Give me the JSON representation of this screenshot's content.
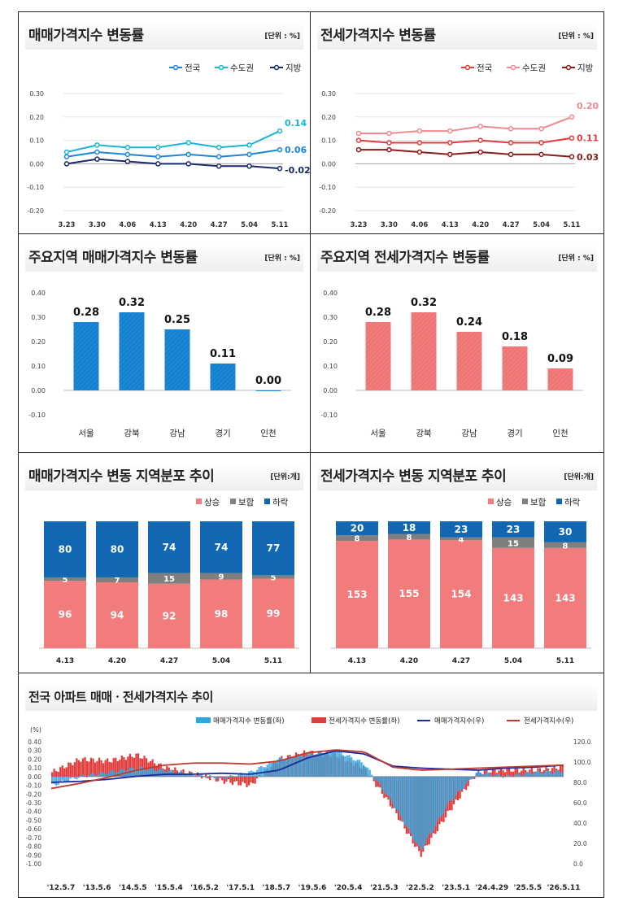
{
  "colors": {
    "blue": "#1b87d8",
    "cyan": "#1cb4d6",
    "navy": "#1b2a6b",
    "red": "#e23b3b",
    "pink": "#f08a8f",
    "darkred": "#8a1c1c",
    "rise": "#f27b7b",
    "flat": "#7f7f7f",
    "fall": "#1167b1"
  },
  "panels": {
    "sale_trend": {
      "title": "매매가격지수 변동률",
      "unit": "[단위 : %]"
    },
    "jeonse_trend": {
      "title": "전세가격지수 변동률",
      "unit": "[단위 : %]"
    },
    "sale_region": {
      "title": "주요지역 매매가격지수 변동률",
      "unit": "[단위 : %]"
    },
    "jeonse_region": {
      "title": "주요지역 전세가격지수 변동률",
      "unit": "[단위 : %]"
    },
    "sale_dist": {
      "title": "매매가격지수 변동 지역분포 추이",
      "unit": "[단위:개]"
    },
    "jeonse_dist": {
      "title": "전세가격지수 변동 지역분포 추이",
      "unit": "[단위:개]"
    },
    "national": {
      "title": "전국 아파트 매매ㆍ전세가격지수 추이"
    }
  },
  "chart_data": [
    {
      "id": "sale_trend",
      "type": "line",
      "categories": [
        "3.23",
        "3.30",
        "4.06",
        "4.13",
        "4.20",
        "4.27",
        "5.04",
        "5.11"
      ],
      "ylim": [
        -0.2,
        0.3
      ],
      "yticks": [
        "0.30",
        "0.20",
        "0.10",
        "0.00",
        "-0.10",
        "-0.20"
      ],
      "series": [
        {
          "name": "전국",
          "color": "#1b87d8",
          "values": [
            0.03,
            0.05,
            0.04,
            0.03,
            0.04,
            0.03,
            0.04,
            0.06
          ],
          "end_label": "0.06"
        },
        {
          "name": "수도권",
          "color": "#1cb4d6",
          "values": [
            0.05,
            0.08,
            0.07,
            0.07,
            0.09,
            0.07,
            0.08,
            0.14
          ],
          "end_label": "0.14"
        },
        {
          "name": "지방",
          "color": "#1b2a6b",
          "values": [
            0.0,
            0.02,
            0.01,
            0.0,
            0.0,
            -0.01,
            -0.01,
            -0.02
          ],
          "end_label": "-0.02"
        }
      ]
    },
    {
      "id": "jeonse_trend",
      "type": "line",
      "categories": [
        "3.23",
        "3.30",
        "4.06",
        "4.13",
        "4.20",
        "4.27",
        "5.04",
        "5.11"
      ],
      "ylim": [
        -0.2,
        0.3
      ],
      "yticks": [
        "0.30",
        "0.20",
        "0.10",
        "0.00",
        "-0.10",
        "-0.20"
      ],
      "series": [
        {
          "name": "전국",
          "color": "#e23b3b",
          "values": [
            0.1,
            0.09,
            0.09,
            0.09,
            0.1,
            0.09,
            0.09,
            0.11
          ],
          "end_label": "0.11"
        },
        {
          "name": "수도권",
          "color": "#f08a8f",
          "values": [
            0.13,
            0.13,
            0.14,
            0.14,
            0.16,
            0.15,
            0.15,
            0.2
          ],
          "end_label": "0.20"
        },
        {
          "name": "지방",
          "color": "#8a1c1c",
          "values": [
            0.06,
            0.06,
            0.05,
            0.04,
            0.05,
            0.04,
            0.04,
            0.03
          ],
          "end_label": "0.03"
        }
      ]
    },
    {
      "id": "sale_region",
      "type": "bar",
      "categories": [
        "서울",
        "강북",
        "강남",
        "경기",
        "인천"
      ],
      "values": [
        0.28,
        0.32,
        0.25,
        0.11,
        0.0
      ],
      "labels": [
        "0.28",
        "0.32",
        "0.25",
        "0.11",
        "0.00"
      ],
      "ylim": [
        -0.1,
        0.4
      ],
      "yticks": [
        "0.40",
        "0.30",
        "0.20",
        "0.10",
        "0.00",
        "-0.10"
      ]
    },
    {
      "id": "jeonse_region",
      "type": "bar",
      "categories": [
        "서울",
        "강북",
        "강남",
        "경기",
        "인천"
      ],
      "values": [
        0.28,
        0.32,
        0.24,
        0.18,
        0.09
      ],
      "labels": [
        "0.28",
        "0.32",
        "0.24",
        "0.18",
        "0.09"
      ],
      "ylim": [
        -0.1,
        0.4
      ],
      "yticks": [
        "0.40",
        "0.30",
        "0.20",
        "0.10",
        "0.00",
        "-0.10"
      ]
    },
    {
      "id": "sale_dist",
      "type": "bar",
      "categories": [
        "4.13",
        "4.20",
        "4.27",
        "5.04",
        "5.11"
      ],
      "series": [
        {
          "name": "상승",
          "values": [
            96,
            94,
            92,
            98,
            99
          ]
        },
        {
          "name": "보합",
          "values": [
            5,
            7,
            15,
            9,
            5
          ]
        },
        {
          "name": "하락",
          "values": [
            80,
            80,
            74,
            74,
            77
          ]
        }
      ]
    },
    {
      "id": "jeonse_dist",
      "type": "bar",
      "categories": [
        "4.13",
        "4.20",
        "4.27",
        "5.04",
        "5.11"
      ],
      "series": [
        {
          "name": "상승",
          "values": [
            153,
            155,
            154,
            143,
            143
          ]
        },
        {
          "name": "보합",
          "values": [
            8,
            8,
            4,
            15,
            8
          ]
        },
        {
          "name": "하락",
          "values": [
            20,
            18,
            23,
            23,
            30
          ]
        }
      ]
    },
    {
      "id": "national",
      "type": "line",
      "x_ticks": [
        "'12.5.7",
        "'13.5.6",
        "'14.5.5",
        "'15.5.4",
        "'16.5.2",
        "'17.5.1",
        "'18.5.7",
        "'19.5.6",
        "'20.5.4",
        "'21.5.3",
        "'22.5.2",
        "'23.5.1",
        "'24.4.29",
        "'25.5.5",
        "'26.5.11"
      ],
      "y_left_label": "(%)",
      "y_left_ticks": [
        "0.40",
        "0.30",
        "0.20",
        "0.10",
        "0.00",
        "-0.10",
        "-0.20",
        "-0.30",
        "-0.40",
        "-0.50",
        "-0.60",
        "-0.70",
        "-0.80",
        "-0.90",
        "-1.00"
      ],
      "y_right_ticks": [
        "120.0",
        "100.0",
        "80.0",
        "60.0",
        "40.0",
        "20.0",
        "0.0"
      ],
      "ylim_left": [
        -1.0,
        0.4
      ],
      "ylim_right": [
        0,
        120
      ],
      "series": [
        {
          "name": "매매가격지수 변동률(좌)",
          "kind": "bar",
          "color": "#2ea6e0",
          "values": [
            -0.1,
            0.0,
            0.05,
            0.1,
            0.07,
            0.02,
            -0.02,
            0.05,
            0.2,
            0.25,
            0.3,
            0.15,
            -0.3,
            -0.85,
            -0.3,
            0.05,
            0.0,
            0.05,
            0.06
          ]
        },
        {
          "name": "전세가격지수 변동률(좌)",
          "kind": "bar",
          "color": "#e23b3b",
          "values": [
            0.05,
            0.2,
            0.18,
            0.25,
            0.1,
            0.03,
            -0.05,
            -0.1,
            0.2,
            0.28,
            0.25,
            0.1,
            -0.35,
            -0.9,
            -0.4,
            0.05,
            0.08,
            0.07,
            0.11
          ]
        },
        {
          "name": "매매가격지수(우)",
          "kind": "line",
          "color": "#1d2a9c",
          "values": [
            80,
            81,
            83,
            86,
            88,
            88,
            89,
            88,
            92,
            104,
            111,
            108,
            96,
            94,
            93,
            92,
            94,
            95,
            97
          ]
        },
        {
          "name": "전세가격지수(우)",
          "kind": "line",
          "color": "#c0392b",
          "values": [
            74,
            79,
            85,
            92,
            97,
            99,
            99,
            98,
            101,
            109,
            112,
            110,
            95,
            92,
            93,
            94,
            95,
            96,
            97
          ]
        }
      ]
    }
  ]
}
